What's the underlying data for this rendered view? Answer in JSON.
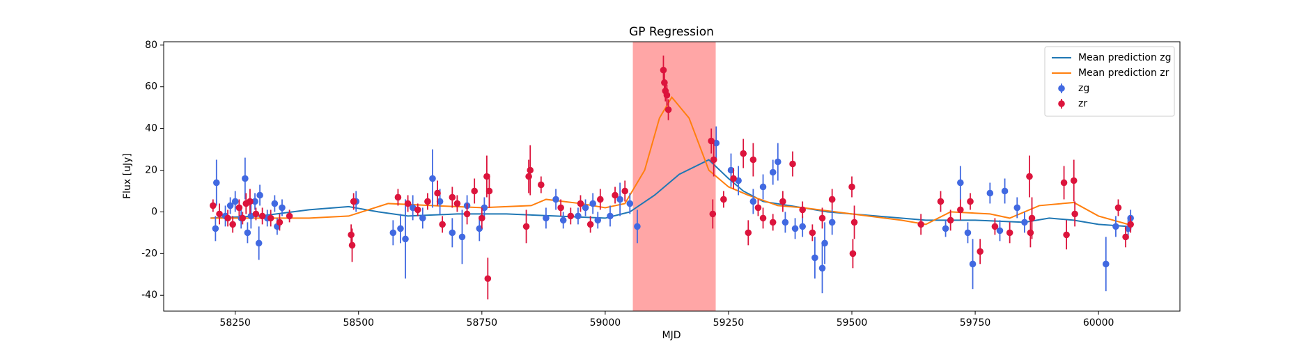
{
  "chart_data": {
    "type": "errorbar",
    "title": "GP Regression",
    "x_label": "MJD",
    "y_label": "Flux [uJy]",
    "xlim": [
      58105,
      60165
    ],
    "ylim": [
      -47.6,
      81.6
    ],
    "xticks": [
      58250,
      58500,
      58750,
      59000,
      59250,
      59500,
      59750,
      60000
    ],
    "yticks": [
      -40,
      -20,
      0,
      20,
      40,
      60,
      80
    ],
    "legend": "upper right",
    "shaded_span": [
      59056,
      59224
    ],
    "shaded_color": "#ff0000",
    "series": [
      {
        "name": "Mean prediction zg",
        "type": "line",
        "color": "#1f77b4",
        "x": [
          58200,
          58300,
          58400,
          58480,
          58540,
          58600,
          58700,
          58800,
          58900,
          59000,
          59050,
          59100,
          59150,
          59210,
          59250,
          59280,
          59320,
          59400,
          59450,
          59550,
          59650,
          59750,
          59850,
          59900,
          59950,
          60000,
          60060
        ],
        "values": [
          -3,
          -2,
          1,
          2.5,
          0,
          -2,
          -1,
          -1,
          -2,
          -3,
          0,
          8,
          18,
          25,
          16,
          10,
          5,
          2,
          0,
          -2,
          -4,
          -4,
          -5,
          -3,
          -4,
          -6,
          -7
        ]
      },
      {
        "name": "Mean prediction zr",
        "type": "line",
        "color": "#ff7f0e",
        "x": [
          58200,
          58300,
          58400,
          58480,
          58560,
          58650,
          58750,
          58850,
          58880,
          58950,
          59000,
          59040,
          59080,
          59110,
          59135,
          59170,
          59210,
          59250,
          59290,
          59350,
          59400,
          59500,
          59600,
          59650,
          59700,
          59780,
          59820,
          59880,
          59950,
          60000,
          60060
        ],
        "values": [
          -3,
          -3,
          -3,
          -2,
          4,
          3,
          2,
          3,
          6,
          4,
          2,
          4,
          20,
          45,
          55,
          45,
          20,
          12,
          8,
          3,
          2,
          -1,
          -4,
          -6,
          0,
          -1,
          -3,
          3,
          4.5,
          -2,
          -6
        ]
      },
      {
        "name": "zg",
        "type": "errorbar",
        "color": "#4169e1",
        "x": [
          58210,
          58212,
          58230,
          58240,
          58250,
          58262,
          58270,
          58275,
          58282,
          58290,
          58298,
          58300,
          58315,
          58330,
          58335,
          58345,
          58495,
          58570,
          58585,
          58595,
          58610,
          58630,
          58650,
          58665,
          58690,
          58710,
          58720,
          58745,
          58755,
          58880,
          58900,
          58915,
          58945,
          58960,
          58975,
          58985,
          59010,
          59030,
          59050,
          59065,
          59225,
          59255,
          59270,
          59300,
          59320,
          59340,
          59350,
          59365,
          59385,
          59400,
          59425,
          59440,
          59445,
          59460,
          59690,
          59720,
          59735,
          59745,
          59780,
          59800,
          59810,
          59835,
          59850,
          60015,
          60035,
          60060,
          60065
        ],
        "values": [
          -8,
          14,
          -2,
          3,
          5,
          -3,
          16,
          -10,
          -2,
          5,
          -15,
          8,
          -3,
          4,
          -7,
          2,
          5,
          -10,
          -8,
          -13,
          2,
          -3,
          16,
          5,
          -10,
          -12,
          3,
          -8,
          2,
          -3,
          6,
          -4,
          -2,
          2,
          4,
          -4,
          -2,
          6,
          4,
          -7,
          33,
          20,
          15,
          5,
          12,
          19,
          24,
          -5,
          -8,
          -7,
          -22,
          -27,
          -15,
          -5,
          -8,
          14,
          -10,
          -25,
          9,
          -9,
          10,
          2,
          -5,
          -25,
          -7,
          -8,
          -3
        ],
        "errors": [
          6,
          11,
          5,
          4,
          5,
          5,
          10,
          5,
          6,
          4,
          8,
          5,
          4,
          4,
          4,
          4,
          5,
          6,
          7,
          19,
          6,
          5,
          14,
          6,
          7,
          13,
          5,
          6,
          5,
          5,
          5,
          4,
          4,
          4,
          5,
          4,
          5,
          8,
          5,
          8,
          8,
          8,
          7,
          6,
          6,
          6,
          9,
          5,
          5,
          5,
          10,
          12,
          10,
          6,
          4,
          8,
          5,
          12,
          5,
          5,
          6,
          5,
          5,
          13,
          5,
          5,
          4
        ]
      },
      {
        "name": "zr",
        "type": "errorbar",
        "color": "#dc143c",
        "x": [
          58205,
          58218,
          58235,
          58245,
          58258,
          58265,
          58272,
          58280,
          58292,
          58305,
          58322,
          58340,
          58360,
          58485,
          58487,
          58490,
          58580,
          58600,
          58620,
          58640,
          58660,
          58670,
          58690,
          58700,
          58720,
          58735,
          58750,
          58760,
          58762,
          58765,
          58840,
          58845,
          58848,
          58870,
          58910,
          58930,
          58950,
          58970,
          58990,
          59020,
          59040,
          59118,
          59120,
          59122,
          59125,
          59128,
          59215,
          59218,
          59220,
          59240,
          59260,
          59280,
          59290,
          59300,
          59310,
          59320,
          59340,
          59360,
          59380,
          59400,
          59420,
          59440,
          59460,
          59500,
          59502,
          59505,
          59640,
          59680,
          59700,
          59720,
          59740,
          59760,
          59790,
          59820,
          59860,
          59862,
          59865,
          59930,
          59935,
          59950,
          59952,
          60040,
          60055,
          60065
        ],
        "values": [
          3,
          -1,
          -3,
          -6,
          2,
          -3,
          4,
          5,
          -1,
          -2,
          -3,
          -5,
          -2,
          -11,
          -16,
          5,
          7,
          4,
          1,
          5,
          9,
          -6,
          7,
          4,
          -1,
          10,
          -3,
          17,
          -32,
          10,
          -7,
          17,
          20,
          13,
          2,
          -2,
          4,
          -6,
          6,
          8,
          10,
          68,
          62,
          58,
          56,
          49,
          34,
          -1,
          25,
          6,
          16,
          28,
          -10,
          25,
          2,
          -3,
          -5,
          5,
          23,
          1,
          -10,
          -3,
          6,
          12,
          -20,
          -5,
          -6,
          5,
          -4,
          1,
          5,
          -19,
          -7,
          -10,
          17,
          -10,
          -3,
          14,
          -11,
          15,
          -1,
          2,
          -12,
          -6
        ],
        "errors": [
          3,
          5,
          4,
          4,
          4,
          3,
          5,
          6,
          3,
          4,
          4,
          4,
          3,
          5,
          8,
          4,
          4,
          4,
          3,
          4,
          6,
          4,
          5,
          4,
          5,
          6,
          5,
          10,
          10,
          8,
          8,
          8,
          12,
          4,
          4,
          4,
          4,
          4,
          5,
          4,
          5,
          7,
          6,
          5,
          5,
          5,
          6,
          7,
          8,
          4,
          5,
          7,
          6,
          8,
          4,
          5,
          4,
          5,
          6,
          4,
          4,
          5,
          5,
          5,
          7,
          8,
          5,
          5,
          5,
          5,
          4,
          6,
          4,
          5,
          10,
          7,
          10,
          8,
          7,
          10,
          6,
          4,
          5,
          4
        ]
      }
    ]
  }
}
